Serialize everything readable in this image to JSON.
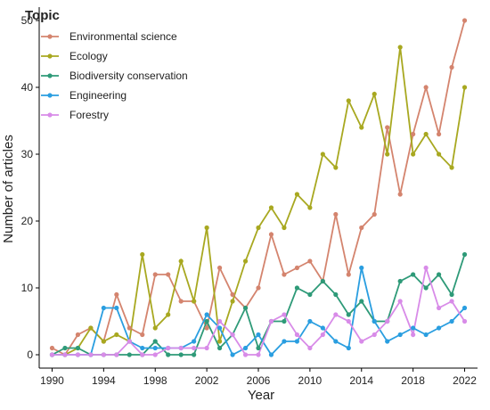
{
  "chart_data": {
    "type": "line",
    "xlabel": "Year",
    "ylabel": "Number of articles",
    "x": [
      1990,
      1991,
      1992,
      1993,
      1994,
      1995,
      1996,
      1997,
      1998,
      1999,
      2000,
      2001,
      2002,
      2003,
      2004,
      2005,
      2006,
      2007,
      2008,
      2009,
      2010,
      2011,
      2012,
      2013,
      2014,
      2015,
      2016,
      2017,
      2018,
      2019,
      2020,
      2021,
      2022
    ],
    "xticks": [
      1990,
      1994,
      1998,
      2002,
      2006,
      2010,
      2014,
      2018,
      2022
    ],
    "yticks": [
      0,
      10,
      20,
      30,
      40,
      50
    ],
    "xlim": [
      1989,
      2023
    ],
    "ylim": [
      -2,
      52
    ],
    "grid": false,
    "legend": {
      "title": "Topic",
      "placement": "top-left"
    },
    "series": [
      {
        "name": "Environmental science",
        "color": "#d4846e",
        "values": [
          1,
          0,
          3,
          4,
          2,
          9,
          4,
          3,
          12,
          12,
          8,
          8,
          4,
          13,
          9,
          7,
          10,
          18,
          12,
          13,
          14,
          11,
          21,
          12,
          19,
          21,
          34,
          24,
          33,
          40,
          33,
          43,
          50
        ]
      },
      {
        "name": "Ecology",
        "color": "#a8a820",
        "values": [
          0,
          0,
          1,
          4,
          2,
          3,
          2,
          15,
          4,
          6,
          14,
          8,
          19,
          2,
          8,
          14,
          19,
          22,
          19,
          24,
          22,
          30,
          28,
          38,
          34,
          39,
          30,
          46,
          30,
          33,
          30,
          28,
          40
        ]
      },
      {
        "name": "Biodiversity conservation",
        "color": "#2e9a78",
        "values": [
          0,
          1,
          1,
          0,
          0,
          0,
          0,
          0,
          2,
          0,
          0,
          0,
          5,
          1,
          3,
          7,
          1,
          5,
          5,
          10,
          9,
          11,
          9,
          6,
          8,
          5,
          5,
          11,
          12,
          10,
          12,
          9,
          15
        ]
      },
      {
        "name": "Engineering",
        "color": "#2a9ee0",
        "values": [
          0,
          0,
          0,
          0,
          7,
          7,
          2,
          1,
          1,
          1,
          1,
          2,
          6,
          4,
          0,
          1,
          3,
          0,
          2,
          2,
          5,
          4,
          2,
          1,
          13,
          5,
          2,
          3,
          4,
          3,
          4,
          5,
          7
        ]
      },
      {
        "name": "Forestry",
        "color": "#d88be8",
        "values": [
          0,
          0,
          0,
          0,
          0,
          0,
          2,
          0,
          0,
          1,
          1,
          1,
          1,
          5,
          3,
          0,
          0,
          5,
          6,
          3,
          1,
          3,
          6,
          5,
          2,
          3,
          5,
          8,
          3,
          13,
          7,
          8,
          5
        ]
      }
    ]
  }
}
